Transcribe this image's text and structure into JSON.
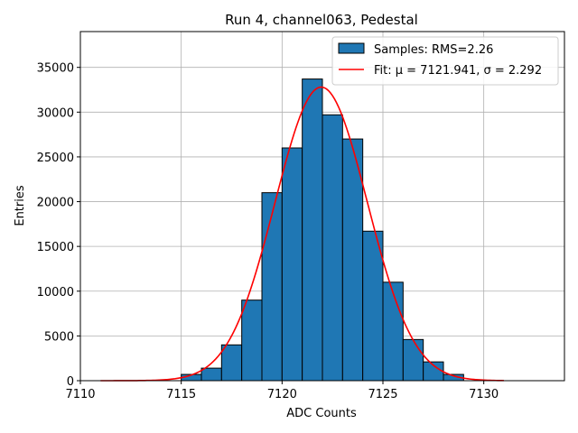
{
  "chart_data": {
    "type": "bar",
    "title": "Run 4, channel063, Pedestal",
    "xlabel": "ADC Counts",
    "ylabel": "Entries",
    "xlim": [
      7110,
      7134
    ],
    "ylim": [
      0,
      39000
    ],
    "xticks": [
      7110,
      7115,
      7120,
      7125,
      7130
    ],
    "yticks": [
      0,
      5000,
      10000,
      15000,
      20000,
      25000,
      30000,
      35000
    ],
    "grid": true,
    "legend_position": "top-right",
    "bar_color": "#1f77b4",
    "fit_color": "#ff0000",
    "histogram": {
      "name": "Samples: RMS=2.26",
      "bin_left_edges": [
        7115,
        7116,
        7117,
        7118,
        7119,
        7120,
        7121,
        7122,
        7123,
        7124,
        7125,
        7126,
        7127,
        7128
      ],
      "bin_width": 1,
      "counts": [
        700,
        1400,
        4000,
        9000,
        21000,
        26000,
        33700,
        29700,
        27000,
        16700,
        11000,
        4600,
        2100,
        700
      ]
    },
    "fit": {
      "name": "Fit: μ = 7121.941, σ = 2.292",
      "mu": 7121.941,
      "sigma": 2.292,
      "amplitude": 32800,
      "x_range": [
        7111,
        7131
      ]
    }
  }
}
